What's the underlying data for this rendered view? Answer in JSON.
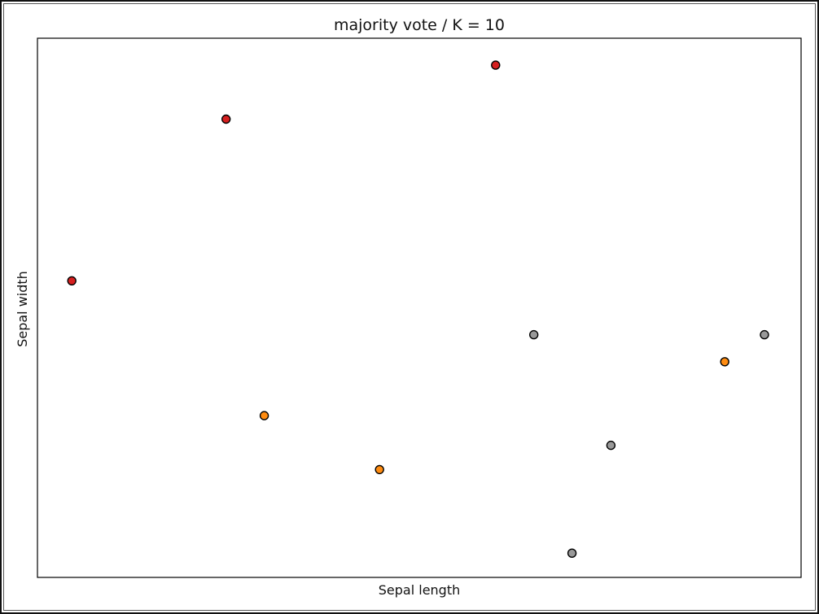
{
  "chart_data": {
    "type": "scatter",
    "title": "majority vote / K = 10",
    "xlabel": "Sepal length",
    "ylabel": "Sepal width",
    "xlim": [
      0,
      10
    ],
    "ylim": [
      0,
      10
    ],
    "grid": false,
    "show_ticks": false,
    "classes": [
      {
        "color": "#d62020"
      },
      {
        "color": "#ff8c11"
      },
      {
        "color": "#999999"
      }
    ],
    "points": [
      {
        "x": 0.45,
        "y": 5.5,
        "class": 0
      },
      {
        "x": 2.47,
        "y": 8.5,
        "class": 0
      },
      {
        "x": 6.0,
        "y": 9.5,
        "class": 0
      },
      {
        "x": 2.97,
        "y": 3.0,
        "class": 1
      },
      {
        "x": 4.48,
        "y": 2.0,
        "class": 1
      },
      {
        "x": 9.0,
        "y": 4.0,
        "class": 1
      },
      {
        "x": 6.5,
        "y": 4.5,
        "class": 2
      },
      {
        "x": 7.0,
        "y": 0.45,
        "class": 2
      },
      {
        "x": 7.51,
        "y": 2.45,
        "class": 2
      },
      {
        "x": 9.52,
        "y": 4.5,
        "class": 2
      }
    ]
  }
}
